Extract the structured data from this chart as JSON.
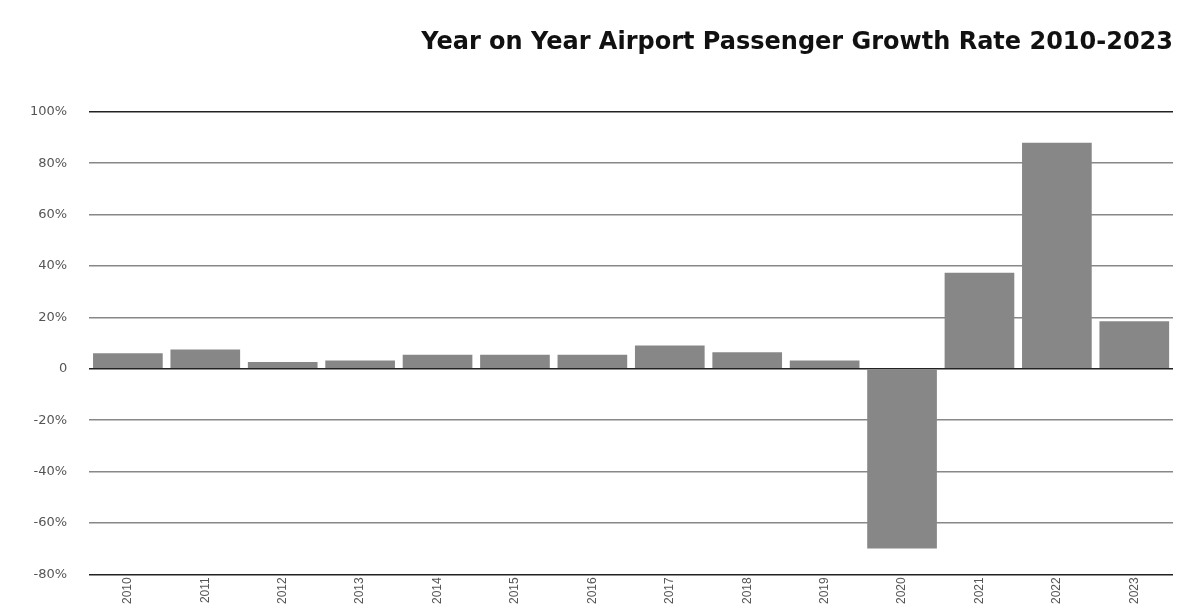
{
  "chart_data": {
    "type": "bar",
    "title": "Year on Year Airport Passenger Growth Rate 2010-2023",
    "categories": [
      "2010",
      "2011",
      "2012",
      "2013",
      "2014",
      "2015",
      "2016",
      "2017",
      "2018",
      "2019",
      "2020",
      "2021",
      "2022",
      "2023"
    ],
    "values": [
      6,
      7.5,
      2.6,
      3.2,
      5.4,
      5.4,
      5.4,
      9,
      6.4,
      3.2,
      -70,
      37.4,
      88,
      18.5
    ],
    "color": "#878787",
    "ylim": [
      -80,
      100
    ],
    "yticks": [
      {
        "value": -80,
        "label": "-80%"
      },
      {
        "value": -60,
        "label": "-60%"
      },
      {
        "value": -40,
        "label": "-40%"
      },
      {
        "value": -20,
        "label": "-20%"
      },
      0,
      {
        "value": 20,
        "label": "20%"
      },
      {
        "value": 40,
        "label": "40%"
      },
      {
        "value": 60,
        "label": "60%"
      },
      {
        "value": 80,
        "label": "80%"
      },
      {
        "value": 100,
        "label": "100%"
      }
    ],
    "grid": "y"
  }
}
